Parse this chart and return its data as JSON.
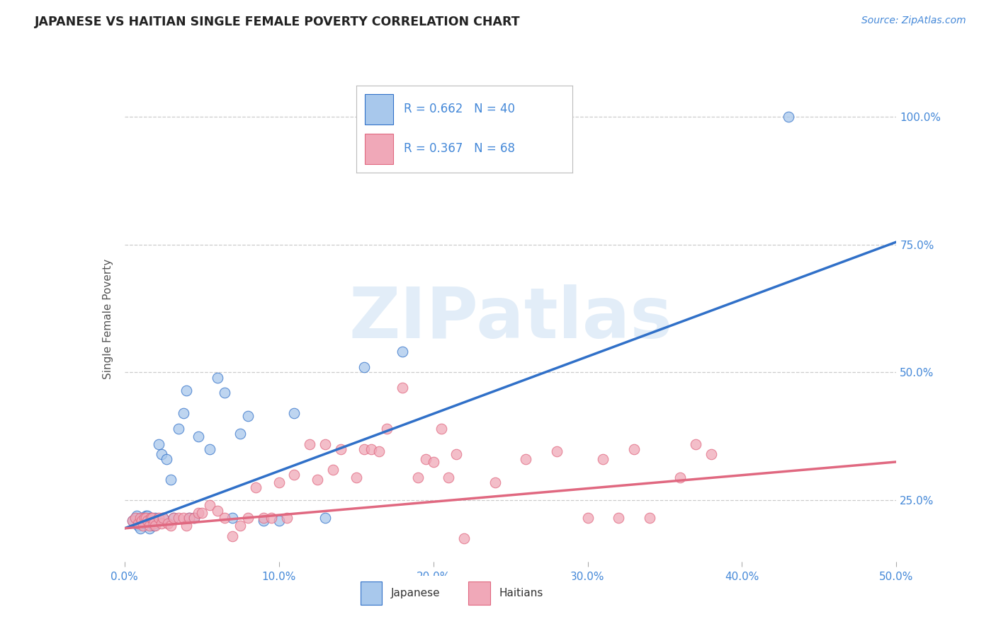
{
  "title": "JAPANESE VS HAITIAN SINGLE FEMALE POVERTY CORRELATION CHART",
  "source_text": "Source: ZipAtlas.com",
  "ylabel": "Single Female Poverty",
  "watermark": "ZIPatlas",
  "xlim": [
    0.0,
    0.5
  ],
  "ylim": [
    0.13,
    1.08
  ],
  "yticks": [
    0.25,
    0.5,
    0.75,
    1.0
  ],
  "ytick_labels": [
    "25.0%",
    "50.0%",
    "75.0%",
    "100.0%"
  ],
  "xticks": [
    0.0,
    0.1,
    0.2,
    0.3,
    0.4,
    0.5
  ],
  "xtick_labels": [
    "0.0%",
    "10.0%",
    "20.0%",
    "30.0%",
    "40.0%",
    "50.0%"
  ],
  "japanese_R": 0.662,
  "japanese_N": 40,
  "haitian_R": 0.367,
  "haitian_N": 68,
  "japanese_color": "#A8C8EC",
  "haitian_color": "#F0A8B8",
  "japanese_line_color": "#3070C8",
  "haitian_line_color": "#E06880",
  "axis_text_color": "#4488D8",
  "title_color": "#222222",
  "background_color": "#FFFFFF",
  "grid_color": "#CCCCCC",
  "japanese_line_x0": 0.0,
  "japanese_line_y0": 0.195,
  "japanese_line_x1": 0.5,
  "japanese_line_y1": 0.755,
  "haitian_line_x0": 0.0,
  "haitian_line_y0": 0.195,
  "haitian_line_x1": 0.5,
  "haitian_line_y1": 0.325,
  "japanese_x": [
    0.005,
    0.007,
    0.008,
    0.009,
    0.01,
    0.011,
    0.012,
    0.013,
    0.014,
    0.015,
    0.016,
    0.017,
    0.018,
    0.019,
    0.02,
    0.022,
    0.024,
    0.025,
    0.027,
    0.03,
    0.032,
    0.035,
    0.038,
    0.04,
    0.042,
    0.045,
    0.048,
    0.055,
    0.06,
    0.065,
    0.07,
    0.075,
    0.08,
    0.09,
    0.1,
    0.11,
    0.13,
    0.155,
    0.18,
    0.43
  ],
  "japanese_y": [
    0.21,
    0.215,
    0.22,
    0.2,
    0.195,
    0.215,
    0.215,
    0.205,
    0.22,
    0.22,
    0.195,
    0.215,
    0.21,
    0.2,
    0.215,
    0.36,
    0.34,
    0.215,
    0.33,
    0.29,
    0.215,
    0.39,
    0.42,
    0.465,
    0.215,
    0.215,
    0.375,
    0.35,
    0.49,
    0.46,
    0.215,
    0.38,
    0.415,
    0.21,
    0.21,
    0.42,
    0.215,
    0.51,
    0.54,
    1.0
  ],
  "haitian_x": [
    0.005,
    0.007,
    0.009,
    0.01,
    0.011,
    0.012,
    0.013,
    0.014,
    0.015,
    0.016,
    0.017,
    0.018,
    0.019,
    0.02,
    0.022,
    0.024,
    0.025,
    0.028,
    0.03,
    0.032,
    0.035,
    0.038,
    0.04,
    0.042,
    0.045,
    0.048,
    0.05,
    0.055,
    0.06,
    0.065,
    0.07,
    0.075,
    0.08,
    0.085,
    0.09,
    0.095,
    0.1,
    0.105,
    0.11,
    0.12,
    0.125,
    0.13,
    0.135,
    0.14,
    0.15,
    0.155,
    0.16,
    0.165,
    0.17,
    0.18,
    0.19,
    0.195,
    0.2,
    0.205,
    0.21,
    0.215,
    0.22,
    0.24,
    0.26,
    0.28,
    0.3,
    0.31,
    0.32,
    0.33,
    0.34,
    0.36,
    0.37,
    0.38
  ],
  "haitian_y": [
    0.21,
    0.215,
    0.205,
    0.215,
    0.21,
    0.2,
    0.215,
    0.215,
    0.21,
    0.2,
    0.215,
    0.215,
    0.205,
    0.2,
    0.215,
    0.205,
    0.215,
    0.205,
    0.2,
    0.215,
    0.215,
    0.215,
    0.2,
    0.215,
    0.215,
    0.225,
    0.225,
    0.24,
    0.23,
    0.215,
    0.18,
    0.2,
    0.215,
    0.275,
    0.215,
    0.215,
    0.285,
    0.215,
    0.3,
    0.36,
    0.29,
    0.36,
    0.31,
    0.35,
    0.295,
    0.35,
    0.35,
    0.345,
    0.39,
    0.47,
    0.295,
    0.33,
    0.325,
    0.39,
    0.295,
    0.34,
    0.175,
    0.285,
    0.33,
    0.345,
    0.215,
    0.33,
    0.215,
    0.35,
    0.215,
    0.295,
    0.36,
    0.34
  ]
}
